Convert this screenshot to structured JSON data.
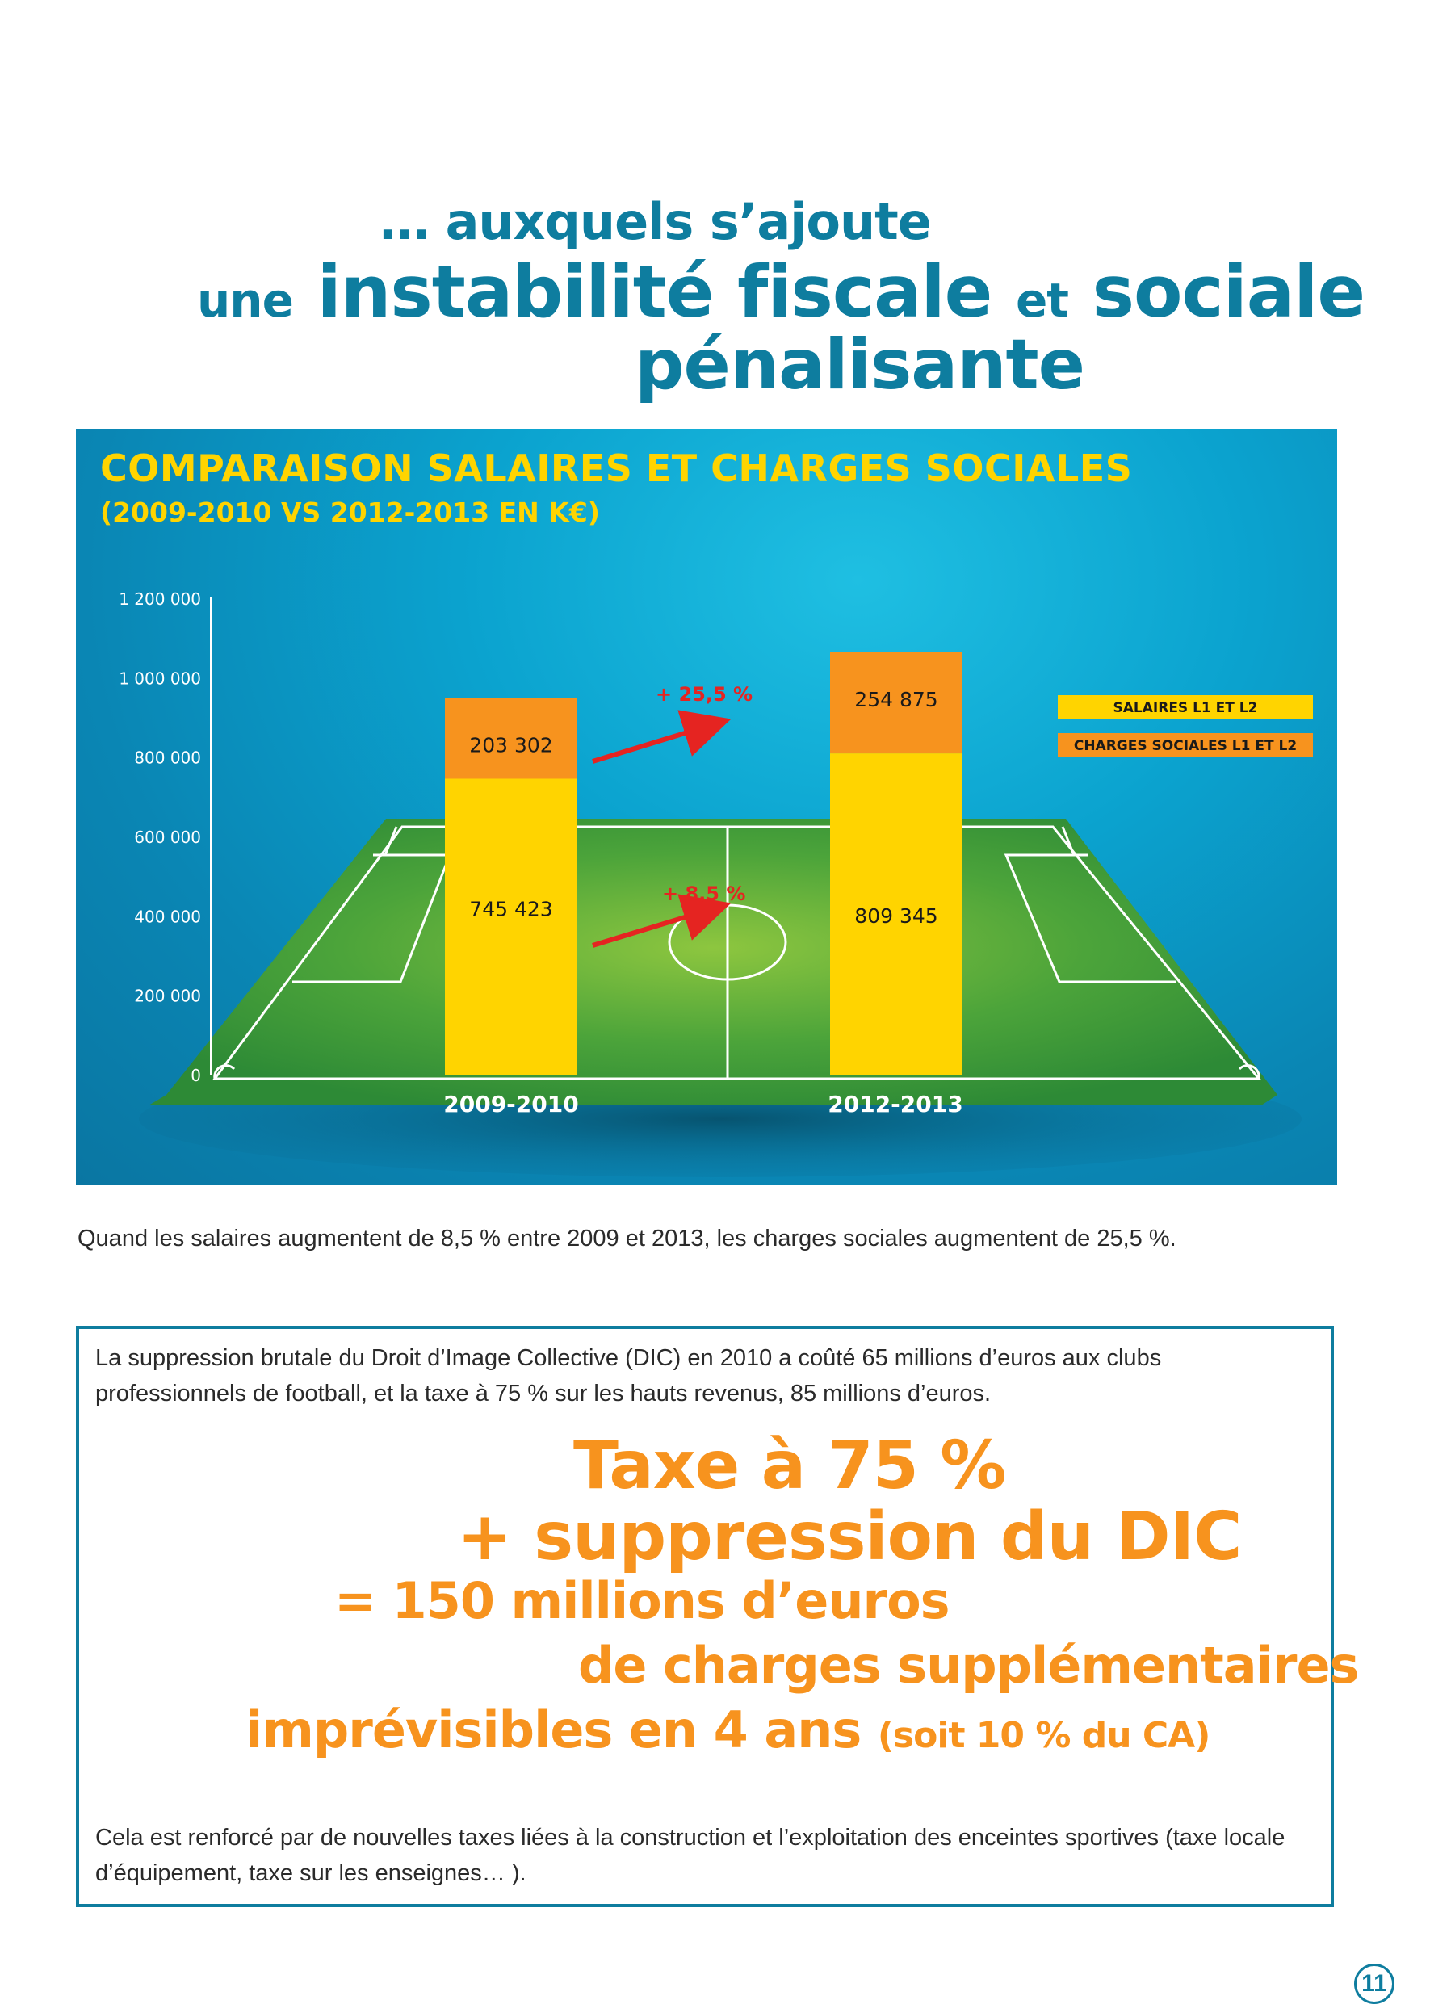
{
  "heading": {
    "line1": "… auxquels s’ajoute",
    "line2_a": "une",
    "line2_b": "instabilité fiscale",
    "line2_c": "et",
    "line2_d": "sociale",
    "line3": "pénalisante"
  },
  "chart": {
    "title": "COMPARAISON SALAIRES ET CHARGES SOCIALES",
    "subtitle": "(2009-2010 VS 2012-2013 EN K€)"
  },
  "chart_data": {
    "type": "bar",
    "stacked": true,
    "title": "COMPARAISON SALAIRES ET CHARGES SOCIALES",
    "subtitle": "(2009-2010 VS 2012-2013 EN K€)",
    "categories": [
      "2009-2010",
      "2012-2013"
    ],
    "series": [
      {
        "name": "SALAIRES L1 ET L2",
        "values": [
          745423,
          809345
        ],
        "labels": [
          "745 423",
          "809 345"
        ],
        "color": "#ffd400"
      },
      {
        "name": "CHARGES SOCIALES L1 ET L2",
        "values": [
          203302,
          254875
        ],
        "labels": [
          "203 302",
          "254 875"
        ],
        "color": "#f7931e"
      }
    ],
    "annotations": [
      {
        "text": "+ 25,5 %",
        "series": "CHARGES SOCIALES L1 ET L2"
      },
      {
        "text": "+ 8,5 %",
        "series": "SALAIRES L1 ET L2"
      }
    ],
    "yticks": [
      0,
      200000,
      400000,
      600000,
      800000,
      1000000,
      1200000
    ],
    "ytick_labels": [
      "0",
      "200 000",
      "400 000",
      "600 000",
      "800 000",
      "1 000 000",
      "1 200 000"
    ],
    "ylim": [
      0,
      1200000
    ],
    "legend": "right",
    "xlabel": "",
    "ylabel": ""
  },
  "caption": "Quand les salaires augmentent de 8,5 % entre 2009 et 2013, les charges sociales augmentent de 25,5 %.",
  "box": {
    "para1": "La suppression brutale du Droit d’Image Collective (DIC) en 2010 a coûté 65 millions d’euros aux clubs professionnels de football, et la taxe à 75 % sur les hauts revenus, 85 millions d’euros.",
    "big1": "Taxe à 75 %",
    "big2": "+ suppression du DIC",
    "big3": "= 150 millions d’euros",
    "big4": "de charges supplémentaires",
    "big5_a": "imprévisibles en 4 ans",
    "big5_b": "(soit 10 % du CA)",
    "para2": "Cela est renforcé par de nouvelles taxes liées à la construction et l’exploitation des enceintes sportives (taxe locale d’équipement, taxe sur les enseignes… )."
  },
  "page_number": "11"
}
